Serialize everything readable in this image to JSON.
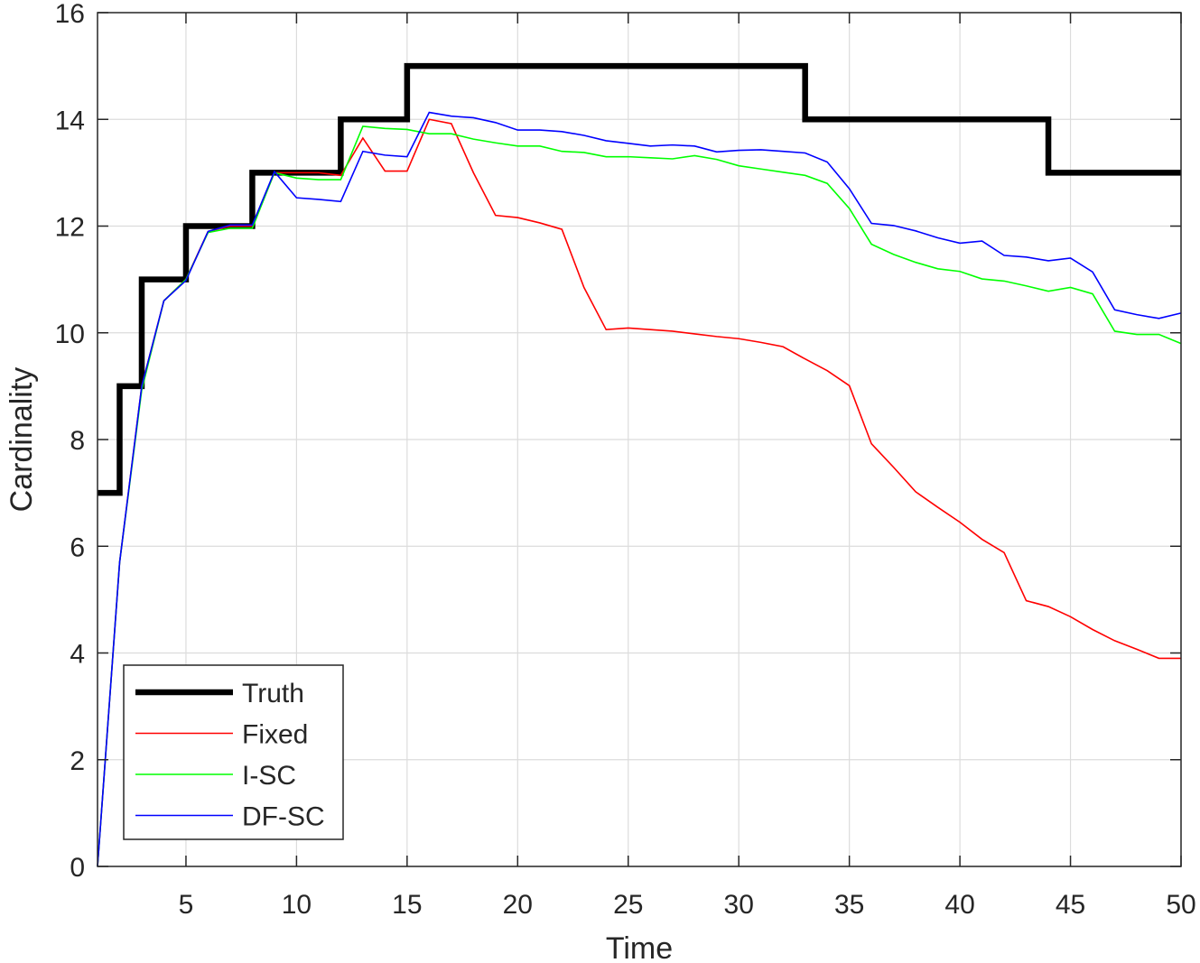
{
  "chart_data": {
    "type": "line",
    "title": "",
    "xlabel": "Time",
    "ylabel": "Cardinality",
    "xlim": [
      1,
      50
    ],
    "ylim": [
      0,
      16
    ],
    "xticks": [
      5,
      10,
      15,
      20,
      25,
      30,
      35,
      40,
      45,
      50
    ],
    "yticks": [
      0,
      2,
      4,
      6,
      8,
      10,
      12,
      14,
      16
    ],
    "grid": true,
    "legend_position": "lower-left",
    "x": [
      1,
      2,
      3,
      4,
      5,
      6,
      7,
      8,
      9,
      10,
      11,
      12,
      13,
      14,
      15,
      16,
      17,
      18,
      19,
      20,
      21,
      22,
      23,
      24,
      25,
      26,
      27,
      28,
      29,
      30,
      31,
      32,
      33,
      34,
      35,
      36,
      37,
      38,
      39,
      40,
      41,
      42,
      43,
      44,
      45,
      46,
      47,
      48,
      49,
      50
    ],
    "series": [
      {
        "name": "Truth",
        "color": "#000000",
        "style": "step",
        "values": [
          7,
          9,
          11,
          11,
          12,
          12,
          12,
          13,
          13,
          13,
          13,
          14,
          14,
          14,
          15,
          15,
          15,
          15,
          15,
          15,
          15,
          15,
          15,
          15,
          15,
          15,
          15,
          15,
          15,
          15,
          15,
          15,
          14,
          14,
          14,
          14,
          14,
          14,
          14,
          14,
          14,
          14,
          14,
          13,
          13,
          13,
          13,
          13,
          13,
          13
        ]
      },
      {
        "name": "Fixed",
        "color": "#ff0000",
        "style": "line",
        "values": [
          0,
          5.7,
          9.0,
          10.6,
          11.0,
          11.9,
          12.0,
          12.0,
          13.0,
          13.0,
          13.0,
          12.95,
          13.65,
          13.03,
          13.03,
          14.0,
          13.92,
          13.0,
          12.2,
          12.16,
          12.06,
          11.94,
          10.85,
          10.06,
          10.09,
          10.06,
          10.03,
          9.98,
          9.93,
          9.89,
          9.82,
          9.74,
          9.51,
          9.29,
          9.01,
          7.92,
          7.48,
          7.02,
          6.73,
          6.45,
          6.13,
          5.88,
          4.98,
          4.87,
          4.68,
          4.44,
          4.23,
          4.07,
          3.9,
          3.9
        ]
      },
      {
        "name": "I-SC",
        "color": "#00ff00",
        "style": "line",
        "values": [
          0,
          5.7,
          8.93,
          10.6,
          11.0,
          11.88,
          11.96,
          11.96,
          13.0,
          12.9,
          12.87,
          12.87,
          13.87,
          13.83,
          13.81,
          13.73,
          13.73,
          13.63,
          13.56,
          13.5,
          13.5,
          13.4,
          13.38,
          13.3,
          13.3,
          13.28,
          13.26,
          13.32,
          13.25,
          13.13,
          13.07,
          13.01,
          12.95,
          12.8,
          12.33,
          11.66,
          11.47,
          11.32,
          11.2,
          11.15,
          11.01,
          10.97,
          10.88,
          10.78,
          10.85,
          10.73,
          10.03,
          9.97,
          9.97,
          9.8
        ]
      },
      {
        "name": "DF-SC",
        "color": "#0000ff",
        "style": "line",
        "values": [
          0,
          5.7,
          9.0,
          10.6,
          10.98,
          11.9,
          12.02,
          12.02,
          13.02,
          12.53,
          12.5,
          12.46,
          13.4,
          13.33,
          13.3,
          14.13,
          14.06,
          14.03,
          13.94,
          13.8,
          13.8,
          13.77,
          13.7,
          13.6,
          13.55,
          13.5,
          13.52,
          13.5,
          13.39,
          13.42,
          13.43,
          13.4,
          13.37,
          13.2,
          12.7,
          12.05,
          12.01,
          11.91,
          11.78,
          11.68,
          11.72,
          11.45,
          11.42,
          11.35,
          11.4,
          11.14,
          10.43,
          10.34,
          10.27,
          10.37
        ]
      }
    ]
  }
}
